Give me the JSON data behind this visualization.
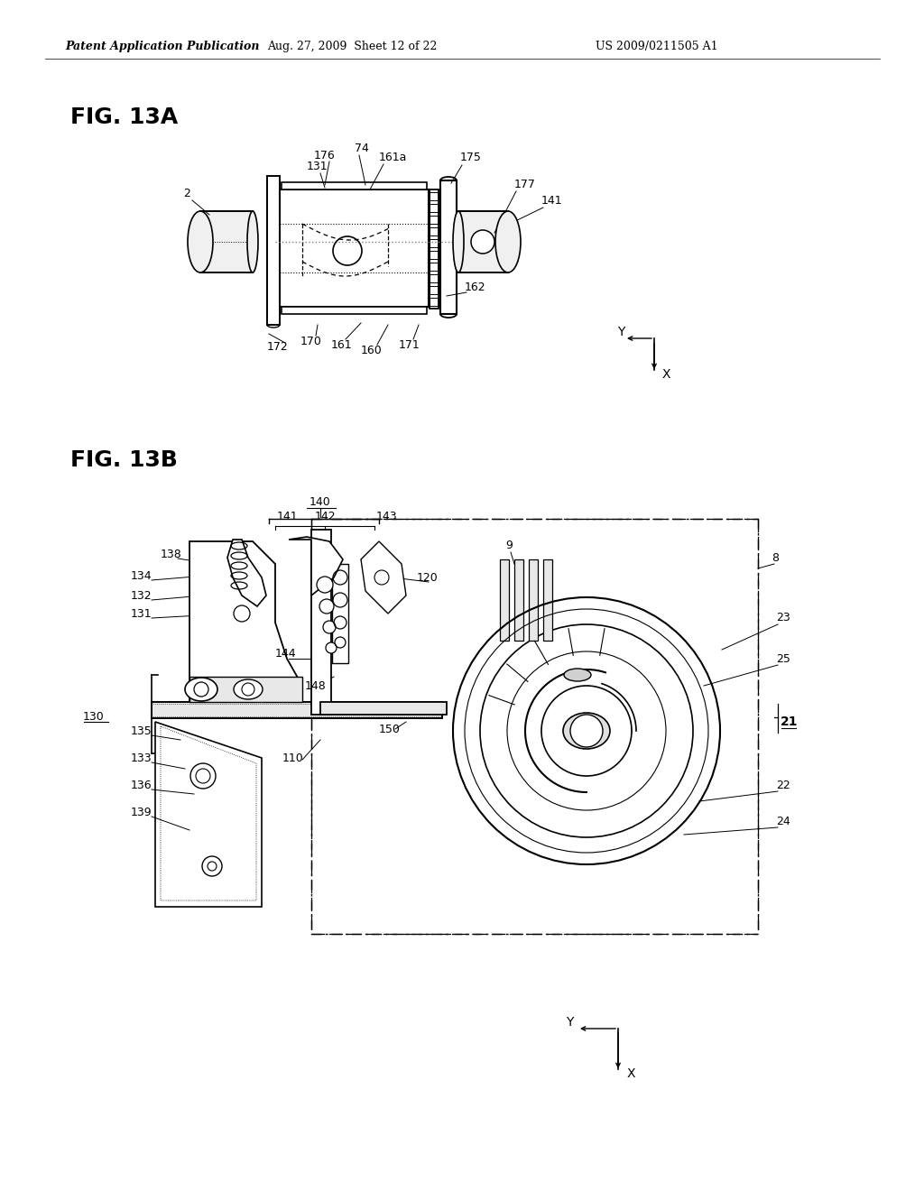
{
  "background_color": "#ffffff",
  "header_left": "Patent Application Publication",
  "header_center": "Aug. 27, 2009  Sheet 12 of 22",
  "header_right": "US 2009/0211505 A1",
  "fig13a_label": "FIG. 13A",
  "fig13b_label": "FIG. 13B",
  "header_fontsize": 9,
  "fig_label_fontsize": 18,
  "annotation_fontsize": 9
}
